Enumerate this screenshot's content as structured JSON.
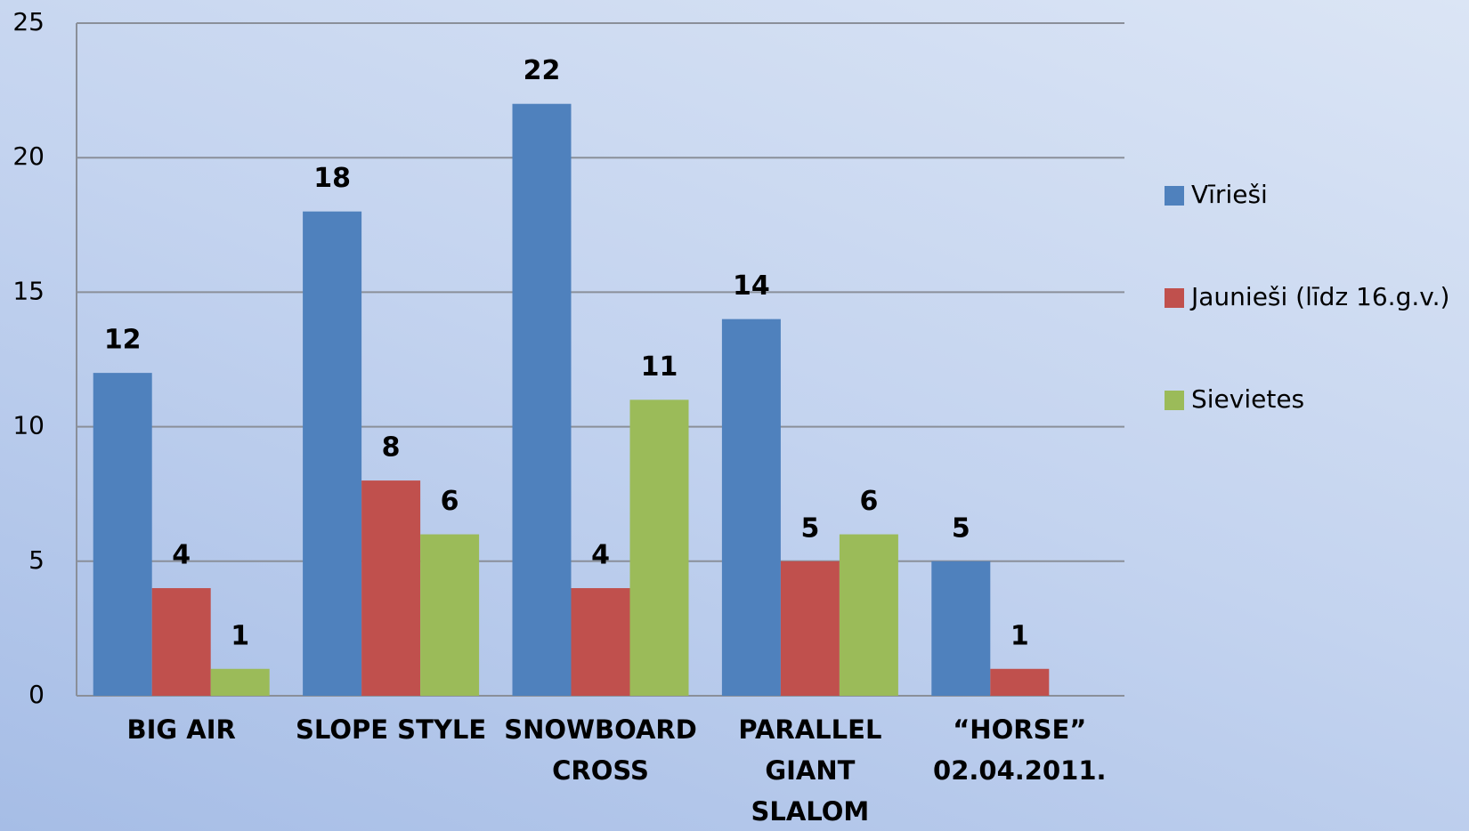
{
  "chart_data": {
    "type": "bar",
    "categories": [
      "BIG AIR",
      "SLOPE STYLE",
      "SNOWBOARD\nCROSS",
      "PARALLEL\nGIANT\nSLALOM",
      "“HORSE”\n02.04.2011."
    ],
    "series": [
      {
        "name": "Vīrieši",
        "color": "#4f81bd",
        "values": [
          12,
          18,
          22,
          14,
          5
        ]
      },
      {
        "name": "Jaunieši (līdz 16.g.v.)",
        "color": "#c0504d",
        "values": [
          4,
          8,
          4,
          5,
          1
        ]
      },
      {
        "name": "Sievietes",
        "color": "#9bbb59",
        "values": [
          1,
          6,
          11,
          6,
          null
        ]
      }
    ],
    "ylim": [
      0,
      25
    ],
    "yticks": [
      0,
      5,
      10,
      15,
      20,
      25
    ],
    "grid": true,
    "legend": "right"
  }
}
